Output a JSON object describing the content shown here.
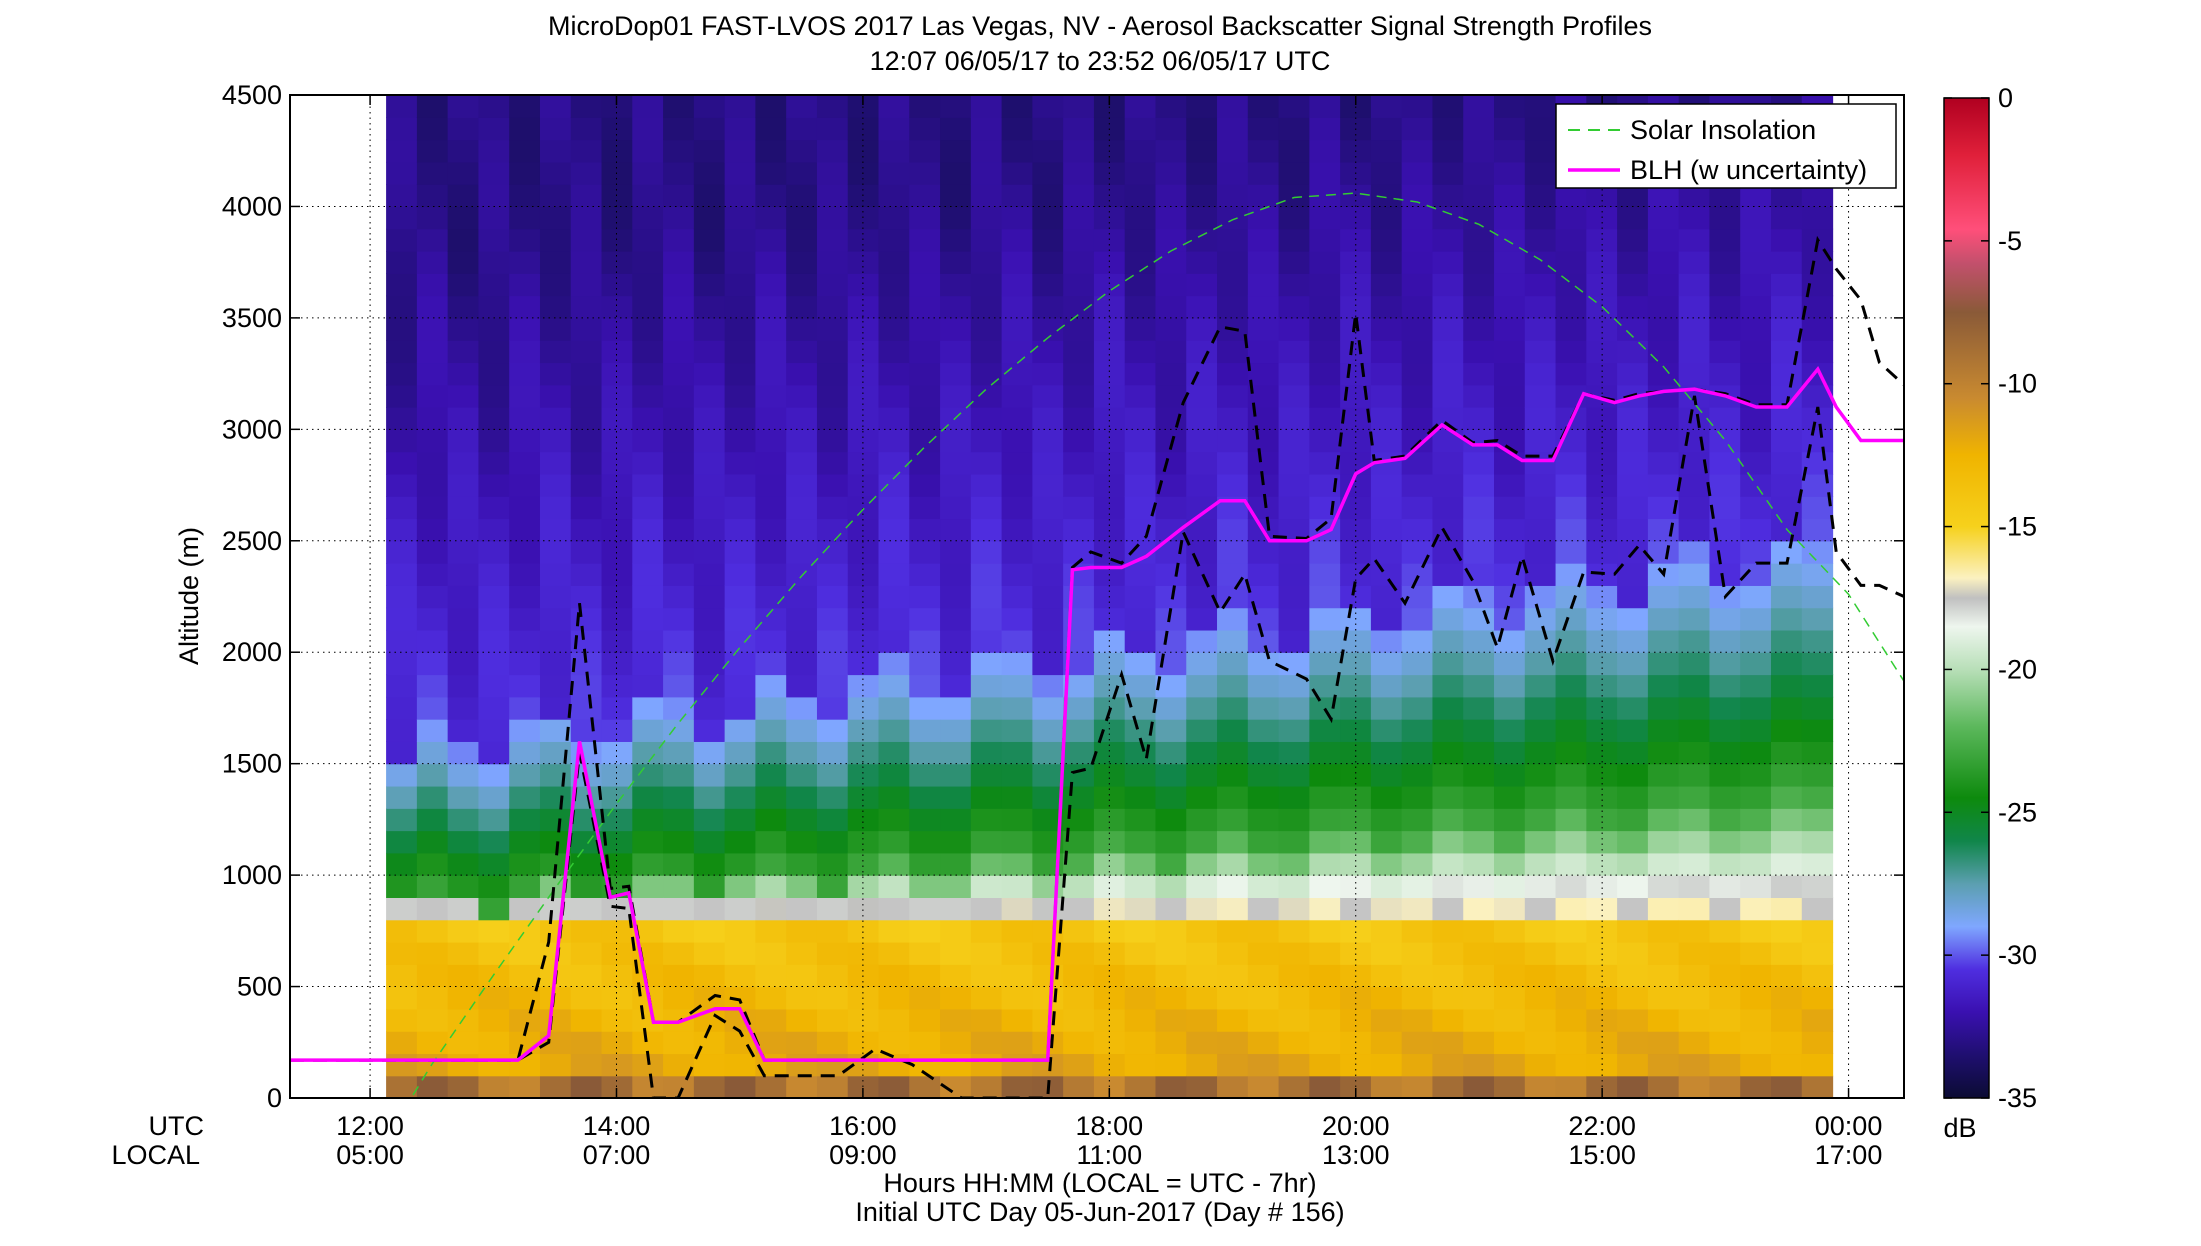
{
  "title_line1": "MicroDop01 FAST-LVOS 2017 Las Vegas, NV - Aerosol Backscatter Signal Strength Profiles",
  "title_line2": "12:07 06/05/17 to 23:52 06/05/17  UTC",
  "ylabel": "Altitude (m)",
  "xlabel_line1": "Hours HH:MM  (LOCAL = UTC - 7hr)",
  "xlabel_line2": "Initial UTC Day 05-Jun-2017 (Day # 156)",
  "row_label_utc": "UTC",
  "row_label_local": "LOCAL",
  "colorbar_unit": "dB",
  "legend": [
    {
      "label": "Solar Insolation",
      "color": "#33cc33",
      "style": "dashed"
    },
    {
      "label": "BLH (w uncertainty)",
      "color": "#ff00ff",
      "style": "solid"
    }
  ],
  "chart_data": {
    "type": "heatmap",
    "x_unit": "hours UTC",
    "xlim": [
      11.35,
      24.45
    ],
    "ylim": [
      0,
      4500
    ],
    "y_ticks": [
      0,
      500,
      1000,
      1500,
      2000,
      2500,
      3000,
      3500,
      4000,
      4500
    ],
    "y_tick_labels": [
      "0",
      "500",
      "1000",
      "1500",
      "2000",
      "2500",
      "3000",
      "3500",
      "4000",
      "4500"
    ],
    "x_ticks": [
      12,
      14,
      16,
      18,
      20,
      22,
      24
    ],
    "x_tick_labels_utc": [
      "12:00",
      "14:00",
      "16:00",
      "18:00",
      "20:00",
      "22:00",
      "00:00"
    ],
    "x_tick_labels_local": [
      "05:00",
      "07:00",
      "09:00",
      "11:00",
      "13:00",
      "15:00",
      "17:00"
    ],
    "grid": true,
    "colorbar": {
      "range": [
        -35,
        0
      ],
      "ticks": [
        0,
        -5,
        -10,
        -15,
        -20,
        -25,
        -30,
        -35
      ],
      "colormap": [
        [
          -35,
          "#0b0b33"
        ],
        [
          -33.5,
          "#1f0f70"
        ],
        [
          -32,
          "#3a10b0"
        ],
        [
          -30.5,
          "#4f2ee0"
        ],
        [
          -29,
          "#7fa7ff"
        ],
        [
          -27.5,
          "#5b9fb0"
        ],
        [
          -26,
          "#10864a"
        ],
        [
          -24.5,
          "#0d8a0d"
        ],
        [
          -22,
          "#5cb85c"
        ],
        [
          -20,
          "#b8dfb8"
        ],
        [
          -18.5,
          "#eef6ee"
        ],
        [
          -17.5,
          "#c0c0c0"
        ],
        [
          -16.8,
          "#fbf1c0"
        ],
        [
          -15,
          "#f6d11c"
        ],
        [
          -12.5,
          "#f0b400"
        ],
        [
          -10.5,
          "#c98a30"
        ],
        [
          -7.5,
          "#8a5a38"
        ],
        [
          -5.8,
          "#c2506c"
        ],
        [
          -4.6,
          "#ff4f7a"
        ],
        [
          -2,
          "#e0203a"
        ],
        [
          0,
          "#b00020"
        ]
      ]
    },
    "heatmap": {
      "x_start": 12.13,
      "x_end": 23.87,
      "columns": 47,
      "cell_height_m": 100,
      "max_alt_m": 4500,
      "note": "signal strength dB: strong aerosol near ground, decreasing with altitude"
    },
    "series": [
      {
        "name": "BLH (w uncertainty)",
        "x": [
          11.35,
          12.9,
          13.2,
          13.45,
          13.7,
          13.95,
          14.1,
          14.3,
          14.5,
          14.8,
          15.0,
          15.2,
          15.5,
          15.8,
          16.1,
          16.4,
          16.8,
          17.2,
          17.5,
          17.7,
          17.85,
          18.1,
          18.3,
          18.6,
          18.9,
          19.1,
          19.3,
          19.6,
          19.8,
          20.0,
          20.15,
          20.4,
          20.7,
          20.95,
          21.15,
          21.35,
          21.6,
          21.85,
          22.1,
          22.3,
          22.5,
          22.75,
          23.0,
          23.25,
          23.5,
          23.75,
          23.9,
          24.1,
          24.25,
          24.45
        ],
        "y": [
          170,
          170,
          170,
          280,
          1600,
          900,
          920,
          340,
          340,
          400,
          400,
          170,
          170,
          170,
          170,
          170,
          170,
          170,
          170,
          2370,
          2380,
          2380,
          2430,
          2560,
          2680,
          2680,
          2500,
          2500,
          2550,
          2800,
          2850,
          2870,
          3020,
          2930,
          2930,
          2860,
          2860,
          3160,
          3120,
          3150,
          3170,
          3180,
          3150,
          3100,
          3100,
          3270,
          3100,
          2950,
          2950,
          2950
        ]
      },
      {
        "name": "BLH upper",
        "x": [
          11.35,
          12.9,
          13.2,
          13.45,
          13.7,
          13.95,
          14.1,
          14.3,
          14.5,
          14.8,
          15.0,
          15.2,
          15.5,
          15.8,
          16.1,
          16.4,
          16.8,
          17.2,
          17.5,
          17.7,
          17.85,
          18.1,
          18.3,
          18.6,
          18.9,
          19.1,
          19.3,
          19.6,
          19.8,
          20.0,
          20.15,
          20.4,
          20.7,
          20.95,
          21.15,
          21.35,
          21.6,
          21.85,
          22.1,
          22.3,
          22.5,
          22.75,
          23.0,
          23.25,
          23.5,
          23.75,
          23.9,
          24.1,
          24.25,
          24.45
        ],
        "y": [
          170,
          170,
          170,
          700,
          2220,
          940,
          950,
          340,
          340,
          460,
          440,
          170,
          170,
          170,
          170,
          170,
          170,
          170,
          170,
          2380,
          2450,
          2400,
          2520,
          3120,
          3460,
          3440,
          2520,
          2510,
          2600,
          3520,
          2860,
          2880,
          3040,
          2940,
          2950,
          2880,
          2880,
          3160,
          3130,
          3160,
          3170,
          3180,
          3160,
          3110,
          3110,
          3850,
          3720,
          3580,
          3300,
          3200
        ]
      },
      {
        "name": "BLH lower",
        "x": [
          11.35,
          12.9,
          13.2,
          13.45,
          13.7,
          13.95,
          14.1,
          14.3,
          14.5,
          14.8,
          15.0,
          15.2,
          15.5,
          15.8,
          16.1,
          16.4,
          16.8,
          17.2,
          17.5,
          17.7,
          17.85,
          18.1,
          18.3,
          18.6,
          18.9,
          19.1,
          19.3,
          19.6,
          19.8,
          20.0,
          20.15,
          20.4,
          20.7,
          20.95,
          21.15,
          21.35,
          21.6,
          21.85,
          22.1,
          22.3,
          22.5,
          22.75,
          23.0,
          23.25,
          23.5,
          23.75,
          23.9,
          24.1,
          24.25,
          24.45
        ],
        "y": [
          170,
          170,
          170,
          250,
          1550,
          860,
          850,
          0,
          0,
          370,
          300,
          100,
          100,
          100,
          220,
          150,
          0,
          0,
          0,
          1460,
          1480,
          1900,
          1520,
          2540,
          2180,
          2350,
          1960,
          1880,
          1700,
          2330,
          2420,
          2220,
          2560,
          2320,
          2020,
          2430,
          1960,
          2360,
          2350,
          2480,
          2350,
          3150,
          2250,
          2400,
          2400,
          3100,
          2450,
          2300,
          2300,
          2250
        ]
      },
      {
        "name": "Solar Insolation",
        "x": [
          11.35,
          12.0,
          12.5,
          13.0,
          13.5,
          14.0,
          14.5,
          15.0,
          15.5,
          16.0,
          16.5,
          17.0,
          17.5,
          18.0,
          18.5,
          19.0,
          19.5,
          20.0,
          20.5,
          21.0,
          21.5,
          22.0,
          22.5,
          23.0,
          23.5,
          24.0,
          24.45
        ],
        "y": [
          -900,
          -300,
          150,
          550,
          940,
          1320,
          1680,
          2020,
          2340,
          2640,
          2920,
          3180,
          3410,
          3620,
          3800,
          3940,
          4040,
          4060,
          4020,
          3920,
          3760,
          3550,
          3280,
          2950,
          2550,
          2260,
          1870
        ]
      }
    ]
  }
}
